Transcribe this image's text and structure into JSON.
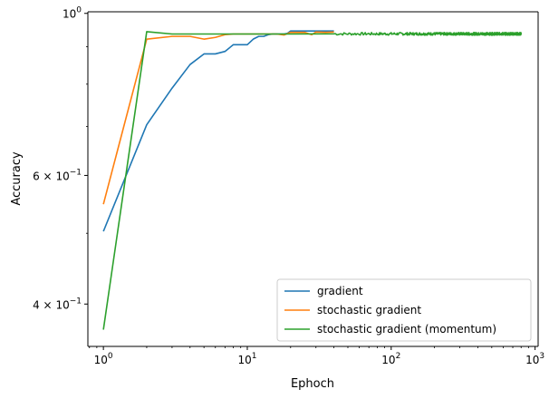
{
  "chart_data": {
    "type": "line",
    "xlabel": "Ephoch",
    "ylabel": "Accuracy",
    "xscale": "log",
    "yscale": "log",
    "xlim": [
      0.78,
      1050
    ],
    "ylim": [
      0.35,
      1.005
    ],
    "grid": false,
    "legend_position": "lower-right",
    "x_ticks": [
      {
        "value": 1,
        "base": "10",
        "exp": "0"
      },
      {
        "value": 10,
        "base": "10",
        "exp": "1"
      },
      {
        "value": 100,
        "base": "10",
        "exp": "2"
      },
      {
        "value": 1000,
        "base": "10",
        "exp": "3"
      }
    ],
    "y_ticks": [
      {
        "value": 1.0,
        "mantissa": "",
        "base": "10",
        "exp": "0"
      },
      {
        "value": 0.6,
        "mantissa": "6 × ",
        "base": "10",
        "exp": "−1"
      },
      {
        "value": 0.4,
        "mantissa": "4 × ",
        "base": "10",
        "exp": "−1"
      }
    ],
    "y_minor_ticks": [
      0.5,
      0.7,
      0.8,
      0.9
    ],
    "series": [
      {
        "name": "gradient",
        "color": "#1f77b4",
        "points": [
          [
            1,
            0.503
          ],
          [
            2,
            0.704
          ],
          [
            3,
            0.79
          ],
          [
            4,
            0.851
          ],
          [
            5,
            0.88
          ],
          [
            6,
            0.88
          ],
          [
            7,
            0.887
          ],
          [
            8,
            0.906
          ],
          [
            9,
            0.906
          ],
          [
            10,
            0.906
          ],
          [
            11,
            0.922
          ],
          [
            12,
            0.93
          ],
          [
            13,
            0.93
          ],
          [
            14,
            0.935
          ],
          [
            15,
            0.937
          ],
          [
            16,
            0.937
          ],
          [
            17,
            0.937
          ],
          [
            18,
            0.937
          ],
          [
            19,
            0.939
          ],
          [
            20,
            0.946
          ],
          [
            22,
            0.946
          ],
          [
            25,
            0.946
          ],
          [
            30,
            0.946
          ],
          [
            35,
            0.946
          ],
          [
            40,
            0.946
          ]
        ]
      },
      {
        "name": "stochastic gradient",
        "color": "#ff7f0e",
        "points": [
          [
            1,
            0.548
          ],
          [
            2,
            0.922
          ],
          [
            3,
            0.93
          ],
          [
            4,
            0.93
          ],
          [
            5,
            0.922
          ],
          [
            6,
            0.927
          ],
          [
            7,
            0.935
          ],
          [
            8,
            0.937
          ],
          [
            10,
            0.937
          ],
          [
            12,
            0.937
          ],
          [
            14,
            0.937
          ],
          [
            16,
            0.937
          ],
          [
            18,
            0.934
          ],
          [
            20,
            0.942
          ],
          [
            25,
            0.942
          ],
          [
            28,
            0.935
          ],
          [
            30,
            0.943
          ],
          [
            35,
            0.942
          ],
          [
            40,
            0.943
          ]
        ]
      },
      {
        "name": "stochastic gradient (momentum)",
        "color": "#2ca02c",
        "points": [
          [
            1,
            0.369
          ],
          [
            2,
            0.944
          ],
          [
            3,
            0.937
          ],
          [
            5,
            0.937
          ],
          [
            10,
            0.937
          ],
          [
            20,
            0.937
          ],
          [
            40,
            0.938
          ],
          [
            60,
            0.935
          ],
          [
            80,
            0.94
          ],
          [
            100,
            0.936
          ],
          [
            150,
            0.94
          ],
          [
            200,
            0.935
          ],
          [
            300,
            0.939
          ],
          [
            400,
            0.936
          ],
          [
            500,
            0.94
          ],
          [
            600,
            0.935
          ],
          [
            700,
            0.939
          ],
          [
            800,
            0.937
          ]
        ],
        "noise_from_x": 40,
        "noise_amplitude": 0.004
      }
    ]
  }
}
